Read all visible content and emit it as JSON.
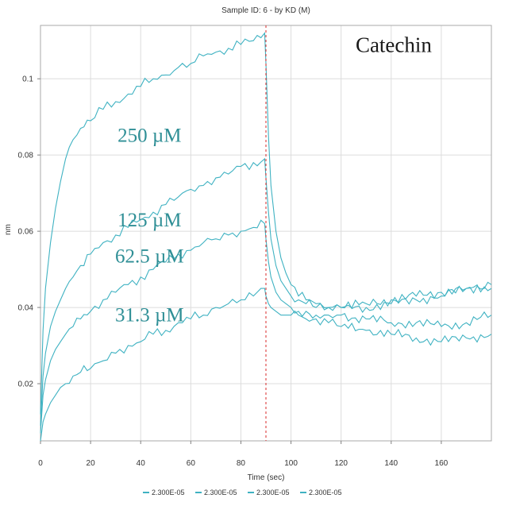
{
  "chart_data": {
    "type": "line",
    "title": "Sample ID: 6 - by KD (M)",
    "xlabel": "Time (sec)",
    "ylabel": "nm",
    "xlim": [
      0,
      180
    ],
    "ylim": [
      0.005,
      0.114
    ],
    "x_ticks": [
      0,
      20,
      40,
      60,
      80,
      100,
      120,
      140,
      160
    ],
    "y_ticks": [
      0.02,
      0.04,
      0.06,
      0.08,
      0.1
    ],
    "y_tick_labels": [
      "0.02",
      "0.04",
      "0.06",
      "0.08",
      "0.1"
    ],
    "grid": true,
    "legend_position": "bottom",
    "marker_x": 90,
    "series": [
      {
        "name": "2.300E-05",
        "label": "250 µM",
        "color": "#3fb2c2",
        "x": [
          0,
          1,
          2,
          4,
          6,
          8,
          10,
          13,
          16,
          20,
          25,
          30,
          35,
          40,
          45,
          50,
          55,
          60,
          65,
          70,
          75,
          80,
          85,
          89.5,
          90,
          91,
          92,
          94,
          96,
          98,
          100,
          103,
          106,
          110,
          115,
          120,
          130,
          140,
          150,
          160,
          170,
          180
        ],
        "y": [
          0.012,
          0.034,
          0.045,
          0.057,
          0.066,
          0.073,
          0.079,
          0.084,
          0.087,
          0.089,
          0.092,
          0.094,
          0.096,
          0.098,
          0.1,
          0.101,
          0.103,
          0.104,
          0.106,
          0.107,
          0.108,
          0.109,
          0.11,
          0.112,
          0.104,
          0.085,
          0.072,
          0.06,
          0.053,
          0.049,
          0.046,
          0.043,
          0.042,
          0.041,
          0.04,
          0.04,
          0.04,
          0.041,
          0.042,
          0.043,
          0.045,
          0.046
        ]
      },
      {
        "name": "2.300E-05",
        "label": "125 µM",
        "color": "#3fb2c2",
        "x": [
          0,
          1,
          2,
          4,
          6,
          8,
          10,
          13,
          16,
          20,
          25,
          30,
          35,
          40,
          45,
          50,
          55,
          60,
          65,
          70,
          75,
          80,
          85,
          89.5,
          90,
          91,
          92,
          94,
          96,
          98,
          100,
          103,
          106,
          110,
          115,
          120,
          130,
          140,
          150,
          160,
          170,
          180
        ],
        "y": [
          0.009,
          0.022,
          0.028,
          0.035,
          0.039,
          0.042,
          0.045,
          0.048,
          0.051,
          0.054,
          0.057,
          0.059,
          0.061,
          0.063,
          0.065,
          0.067,
          0.069,
          0.071,
          0.072,
          0.074,
          0.075,
          0.077,
          0.078,
          0.079,
          0.074,
          0.065,
          0.058,
          0.051,
          0.047,
          0.045,
          0.043,
          0.042,
          0.041,
          0.04,
          0.04,
          0.04,
          0.041,
          0.042,
          0.043,
          0.044,
          0.045,
          0.045
        ]
      },
      {
        "name": "2.300E-05",
        "label": "62.5 µM",
        "color": "#3fb2c2",
        "x": [
          0,
          1,
          2,
          4,
          6,
          8,
          10,
          13,
          16,
          20,
          25,
          30,
          35,
          40,
          45,
          50,
          55,
          60,
          65,
          70,
          75,
          80,
          85,
          89.5,
          90,
          91,
          92,
          94,
          96,
          98,
          100,
          103,
          106,
          110,
          115,
          120,
          130,
          140,
          150,
          160,
          170,
          180
        ],
        "y": [
          0.007,
          0.017,
          0.021,
          0.026,
          0.029,
          0.031,
          0.033,
          0.035,
          0.037,
          0.039,
          0.042,
          0.044,
          0.046,
          0.048,
          0.05,
          0.052,
          0.054,
          0.055,
          0.057,
          0.058,
          0.059,
          0.06,
          0.061,
          0.062,
          0.058,
          0.052,
          0.048,
          0.044,
          0.042,
          0.041,
          0.04,
          0.039,
          0.039,
          0.038,
          0.038,
          0.038,
          0.037,
          0.036,
          0.036,
          0.035,
          0.036,
          0.038
        ]
      },
      {
        "name": "2.300E-05",
        "label": "31.3 µM",
        "color": "#3fb2c2",
        "x": [
          0,
          1,
          2,
          4,
          6,
          8,
          10,
          13,
          16,
          20,
          25,
          30,
          35,
          40,
          45,
          50,
          55,
          60,
          65,
          70,
          75,
          80,
          85,
          89.5,
          90,
          91,
          92,
          94,
          96,
          98,
          100,
          103,
          106,
          110,
          115,
          120,
          130,
          140,
          150,
          160,
          170,
          180
        ],
        "y": [
          0.005,
          0.01,
          0.012,
          0.015,
          0.017,
          0.019,
          0.02,
          0.022,
          0.023,
          0.024,
          0.026,
          0.028,
          0.03,
          0.031,
          0.033,
          0.034,
          0.036,
          0.037,
          0.038,
          0.04,
          0.041,
          0.042,
          0.043,
          0.045,
          0.043,
          0.041,
          0.04,
          0.039,
          0.038,
          0.038,
          0.038,
          0.038,
          0.037,
          0.037,
          0.036,
          0.035,
          0.034,
          0.033,
          0.032,
          0.031,
          0.032,
          0.033
        ]
      }
    ],
    "annotations": [
      {
        "text": "Catechin",
        "x": 141,
        "y": 0.107
      },
      {
        "text": "250 µM",
        "x": 43.5,
        "y": 0.0835
      },
      {
        "text": "125 µM",
        "x": 43.5,
        "y": 0.0613
      },
      {
        "text": "62.5 µM",
        "x": 43.5,
        "y": 0.0518
      },
      {
        "text": "31.3 µM",
        "x": 43.5,
        "y": 0.0364
      }
    ]
  }
}
